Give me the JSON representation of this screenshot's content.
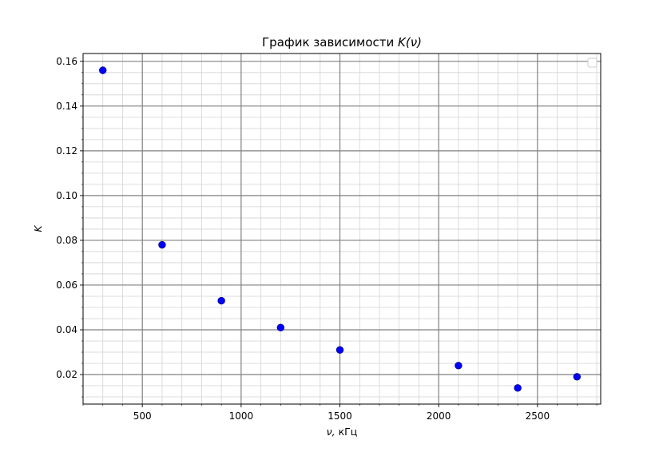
{
  "chart_data": {
    "type": "scatter",
    "title_prefix": "График зависимости ",
    "title_math": "K(ν)",
    "xlabel_math": "ν,",
    "xlabel_unit": "кГц",
    "ylabel": "K",
    "xlim": [
      200,
      2820
    ],
    "ylim": [
      0.0068,
      0.1635
    ],
    "x_ticks": [
      500,
      1000,
      1500,
      2000,
      2500
    ],
    "x_tick_labels": [
      "500",
      "1000",
      "1500",
      "2000",
      "2500"
    ],
    "y_ticks": [
      0.02,
      0.04,
      0.06,
      0.08,
      0.1,
      0.12,
      0.14,
      0.16
    ],
    "y_tick_labels": [
      "0.02",
      "0.04",
      "0.06",
      "0.08",
      "0.10",
      "0.12",
      "0.14",
      "0.16"
    ],
    "x_minor_step": 100,
    "y_minor_step": 0.005,
    "grid": true,
    "legend": "top-right (empty)",
    "colors": {
      "points": "#0000ff",
      "point_edge": "#00008b",
      "major_grid": "#808080",
      "minor_grid": "#d3d3d3"
    },
    "points": [
      {
        "x": 300,
        "y": 0.156
      },
      {
        "x": 600,
        "y": 0.078
      },
      {
        "x": 900,
        "y": 0.053
      },
      {
        "x": 1200,
        "y": 0.041
      },
      {
        "x": 1500,
        "y": 0.031
      },
      {
        "x": 2100,
        "y": 0.024
      },
      {
        "x": 2400,
        "y": 0.014
      },
      {
        "x": 2700,
        "y": 0.019
      }
    ]
  }
}
